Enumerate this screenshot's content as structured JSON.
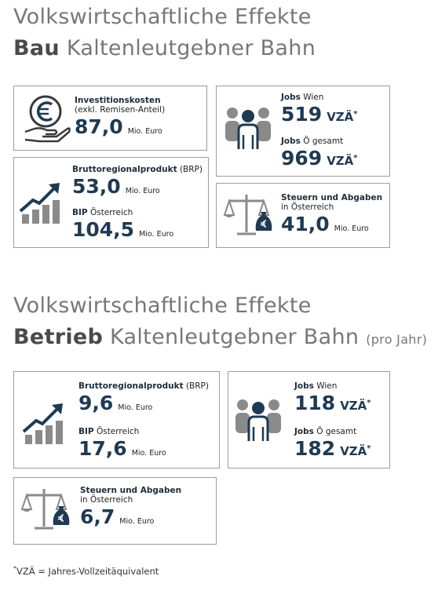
{
  "sections": [
    {
      "title": {
        "line1": "Volkswirtschaftliche Effekte",
        "bold": "Bau",
        "rest": "Kaltenleutgebner Bahn"
      },
      "invest": {
        "label": "Investitionskosten",
        "sublabel": "(exkl. Remisen-Anteil)",
        "value": "87,0",
        "unit": "Mio. Euro"
      },
      "jobs": [
        {
          "label": "Jobs",
          "qualifier": "Wien",
          "value": "519",
          "unit": "VZÄ",
          "mark": "*"
        },
        {
          "label": "Jobs",
          "qualifier": "Ö gesamt",
          "value": "969",
          "unit": "VZÄ",
          "mark": "*"
        }
      ],
      "brp": [
        {
          "label": "Bruttoregionalprodukt",
          "qualifier": "(BRP)",
          "value": "53,0",
          "unit": "Mio. Euro"
        },
        {
          "label": "BIP",
          "qualifier": "Österreich",
          "value": "104,5",
          "unit": "Mio. Euro"
        }
      ],
      "tax": {
        "label": "Steuern und Abgaben",
        "qualifier": "in Österreich",
        "value": "41,0",
        "unit": "Mio. Euro"
      }
    },
    {
      "title": {
        "line1": "Volkswirtschaftliche Effekte",
        "bold": "Betrieb",
        "rest": "Kaltenleutgebner Bahn",
        "suffix": "(pro Jahr)"
      },
      "brp": [
        {
          "label": "Bruttoregionalprodukt",
          "qualifier": "(BRP)",
          "value": "9,6",
          "unit": "Mio. Euro"
        },
        {
          "label": "BIP",
          "qualifier": "Österreich",
          "value": "17,6",
          "unit": "Mio. Euro"
        }
      ],
      "jobs": [
        {
          "label": "Jobs",
          "qualifier": "Wien",
          "value": "118",
          "unit": "VZÄ",
          "mark": "*"
        },
        {
          "label": "Jobs",
          "qualifier": "Ö gesamt",
          "value": "182",
          "unit": "VZÄ",
          "mark": "*"
        }
      ],
      "tax": {
        "label": "Steuern und Abgaben",
        "qualifier": "in Österreich",
        "value": "6,7",
        "unit": "Mio. Euro"
      }
    }
  ],
  "footnote": {
    "mark": "*",
    "text": "VZÄ = Jahres-Vollzeitäquivalent"
  }
}
